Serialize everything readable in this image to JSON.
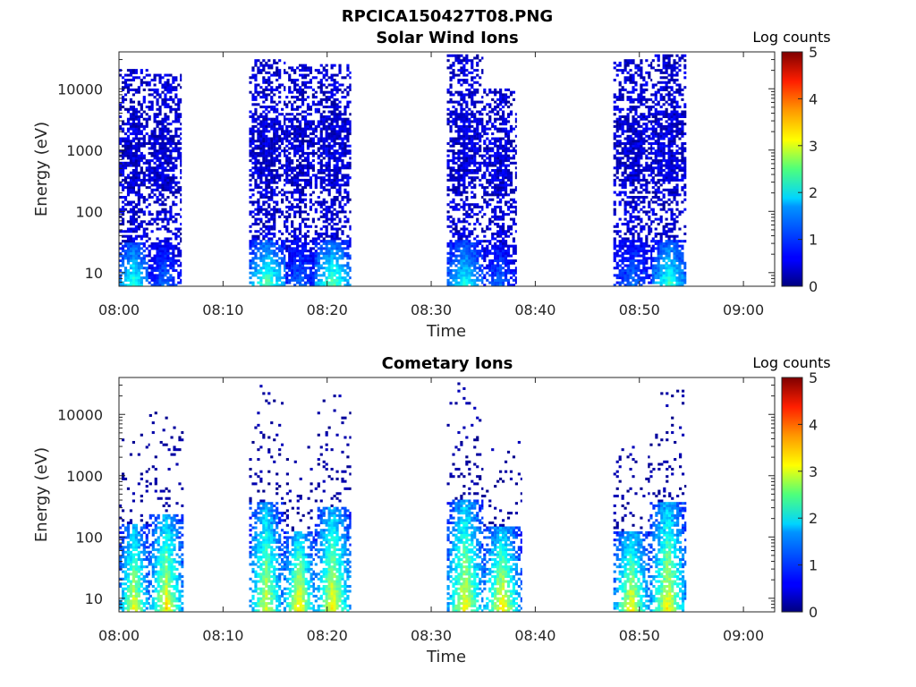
{
  "figure_title": "RPCICA150427T08.PNG",
  "chart_data": [
    {
      "type": "heatmap",
      "title": "Solar Wind Ions",
      "xlabel": "Time",
      "ylabel": "Energy (eV)",
      "x_ticks": [
        "08:00",
        "08:10",
        "08:20",
        "08:30",
        "08:40",
        "08:50",
        "09:00"
      ],
      "x_range_minutes": [
        0,
        63
      ],
      "y_scale": "log",
      "y_ticks": [
        "10",
        "100",
        "1000",
        "10000"
      ],
      "y_range": [
        6,
        40000
      ],
      "colorbar": {
        "label": "Log counts",
        "ticks": [
          "0",
          "1",
          "2",
          "3",
          "4",
          "5"
        ],
        "range": [
          0,
          5
        ],
        "colormap": "jet"
      },
      "bursts": [
        {
          "start_min": 0.0,
          "end_min": 2.8,
          "peak_log_counts": 2.0,
          "max_energy_eV": 20000
        },
        {
          "start_min": 2.8,
          "end_min": 6.0,
          "peak_log_counts": 1.0,
          "max_energy_eV": 16000
        },
        {
          "start_min": 12.5,
          "end_min": 16.0,
          "peak_log_counts": 2.2,
          "max_energy_eV": 30000
        },
        {
          "start_min": 16.0,
          "end_min": 18.8,
          "peak_log_counts": 1.0,
          "max_energy_eV": 25000
        },
        {
          "start_min": 18.8,
          "end_min": 22.3,
          "peak_log_counts": 2.2,
          "max_energy_eV": 25000
        },
        {
          "start_min": 31.5,
          "end_min": 35.0,
          "peak_log_counts": 1.8,
          "max_energy_eV": 35000
        },
        {
          "start_min": 35.0,
          "end_min": 38.2,
          "peak_log_counts": 1.0,
          "max_energy_eV": 10000
        },
        {
          "start_min": 47.5,
          "end_min": 51.2,
          "peak_log_counts": 1.0,
          "max_energy_eV": 30000
        },
        {
          "start_min": 51.2,
          "end_min": 54.5,
          "peak_log_counts": 2.0,
          "max_energy_eV": 35000
        }
      ]
    },
    {
      "type": "heatmap",
      "title": "Cometary Ions",
      "xlabel": "Time",
      "ylabel": "Energy (eV)",
      "x_ticks": [
        "08:00",
        "08:10",
        "08:20",
        "08:30",
        "08:40",
        "08:50",
        "09:00"
      ],
      "x_range_minutes": [
        0,
        63
      ],
      "y_scale": "log",
      "y_ticks": [
        "10",
        "100",
        "1000",
        "10000"
      ],
      "y_range": [
        6,
        40000
      ],
      "colorbar": {
        "label": "Log counts",
        "ticks": [
          "0",
          "1",
          "2",
          "3",
          "4",
          "5"
        ],
        "range": [
          0,
          5
        ],
        "colormap": "jet"
      },
      "bursts": [
        {
          "start_min": 0.0,
          "end_min": 2.9,
          "peak_log_counts": 2.9,
          "max_energy_eV": 5000
        },
        {
          "start_min": 2.9,
          "end_min": 6.2,
          "peak_log_counts": 3.0,
          "max_energy_eV": 12000
        },
        {
          "start_min": 12.5,
          "end_min": 15.8,
          "peak_log_counts": 2.8,
          "max_energy_eV": 30000
        },
        {
          "start_min": 15.8,
          "end_min": 18.8,
          "peak_log_counts": 3.2,
          "max_energy_eV": 3000
        },
        {
          "start_min": 18.8,
          "end_min": 22.3,
          "peak_log_counts": 3.0,
          "max_energy_eV": 20000
        },
        {
          "start_min": 31.5,
          "end_min": 35.0,
          "peak_log_counts": 3.0,
          "max_energy_eV": 35000
        },
        {
          "start_min": 35.0,
          "end_min": 38.6,
          "peak_log_counts": 3.1,
          "max_energy_eV": 4000
        },
        {
          "start_min": 47.5,
          "end_min": 51.0,
          "peak_log_counts": 3.0,
          "max_energy_eV": 3000
        },
        {
          "start_min": 51.0,
          "end_min": 54.5,
          "peak_log_counts": 3.0,
          "max_energy_eV": 30000
        }
      ]
    }
  ]
}
